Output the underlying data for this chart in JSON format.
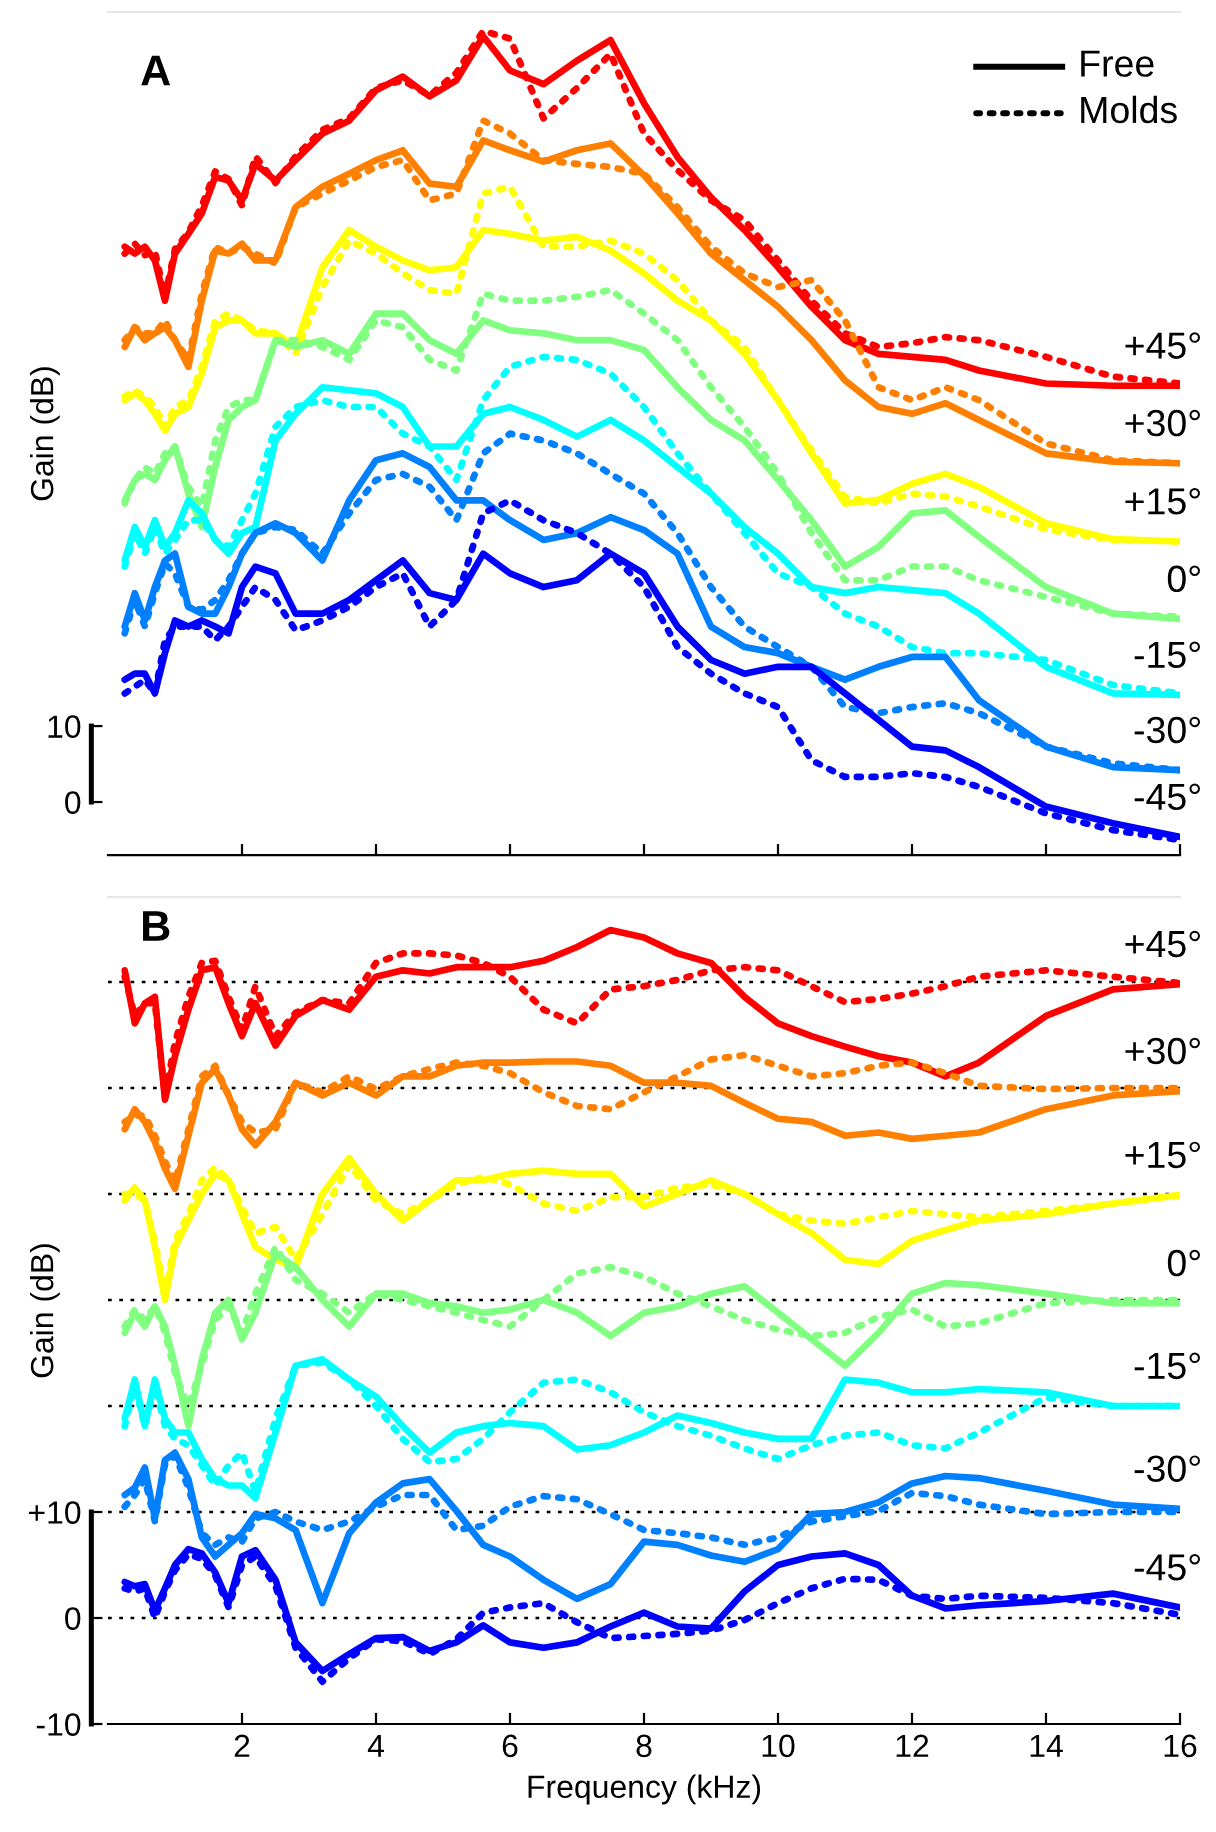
{
  "chart_data": [
    {
      "type": "line",
      "annotations": [
        "A",
        "Free",
        "Molds"
      ],
      "ylabel": "Gain (dB)",
      "tick_labels": "y",
      "x": [
        0.25,
        0.4,
        0.55,
        0.7,
        0.85,
        1.0,
        1.2,
        1.4,
        1.6,
        1.8,
        2.0,
        2.2,
        2.5,
        2.8,
        3.2,
        3.6,
        4.0,
        4.4,
        4.8,
        5.2,
        5.6,
        6.0,
        6.5,
        7.0,
        7.5,
        8.0,
        8.5,
        9.0,
        9.5,
        10,
        10.5,
        11,
        11.5,
        12,
        12.5,
        13,
        14,
        15,
        16
      ],
      "xlim": [
        0,
        16
      ],
      "xticks": [
        2,
        4,
        6,
        8,
        10,
        12,
        14,
        16
      ],
      "ylim": [
        -7,
        104
      ],
      "yticks": [
        0,
        10
      ],
      "series": [
        {
          "name": "+45°",
          "color": "#ff0000",
          "line_style": "solid",
          "values": [
            73.1,
            72.2,
            73.1,
            71.3,
            66,
            72.2,
            74.8,
            77.5,
            82.3,
            81.8,
            79.2,
            84,
            81.8,
            84.5,
            88,
            89.7,
            93.7,
            95.5,
            92.9,
            95,
            100.8,
            96.3,
            94.5,
            97.6,
            100.3,
            92,
            84.9,
            79.6,
            75.3,
            70.4,
            65.2,
            60.8,
            59,
            58.6,
            58.2,
            56.8,
            55.1,
            54.8,
            54.8
          ]
        },
        {
          "color": "#ff0000",
          "line_style": "dotted",
          "values": [
            72.2,
            73.5,
            72,
            72.5,
            66.5,
            72.8,
            75,
            78.5,
            83,
            82,
            78.5,
            85,
            81.5,
            85,
            88.5,
            90,
            94,
            95,
            93,
            96,
            101.5,
            100.5,
            90,
            94,
            98.5,
            88,
            83.2,
            79.2,
            76.6,
            71.3,
            66,
            61.7,
            59.9,
            60.4,
            61.2,
            60.8,
            58.6,
            56,
            55.1
          ]
        },
        {
          "name": "+30°",
          "color": "#ff8000",
          "line_style": "solid",
          "values": [
            59.9,
            62.5,
            60.8,
            61.7,
            62.5,
            60.8,
            57.3,
            66,
            72.6,
            72.2,
            73.5,
            71.3,
            71.3,
            78.3,
            81,
            82.7,
            84.5,
            85.8,
            81.4,
            81,
            87.1,
            85.8,
            84.3,
            85.8,
            86.7,
            82.5,
            77.5,
            72.2,
            68.7,
            65.2,
            60.8,
            55.5,
            52,
            51.1,
            52.5,
            50.3,
            45.9,
            44.8,
            44.6
          ]
        },
        {
          "color": "#ff8000",
          "line_style": "dotted",
          "values": [
            60.8,
            62.5,
            61.7,
            61.7,
            63.4,
            60.8,
            58.2,
            66.9,
            73.1,
            72.2,
            73.1,
            72.2,
            70.9,
            78.3,
            80.1,
            81.8,
            83.6,
            84.5,
            79.2,
            80.1,
            89.7,
            88,
            84.5,
            84,
            83.6,
            82.7,
            78.3,
            73.1,
            69.6,
            67.8,
            68.7,
            63.4,
            54.6,
            52.9,
            54.6,
            52.9,
            47.2,
            45,
            44.6
          ]
        },
        {
          "name": "+15°",
          "color": "#ffff00",
          "line_style": "solid",
          "values": [
            52.9,
            53.8,
            52.9,
            51.1,
            48.9,
            51.1,
            52,
            56.4,
            62.5,
            63.4,
            63.4,
            61.7,
            61.7,
            59.9,
            70.4,
            75.3,
            73.1,
            71.3,
            70,
            70.4,
            75.3,
            74.8,
            73.9,
            74.4,
            72.6,
            69.6,
            66,
            63.4,
            59,
            52.9,
            45.9,
            39.3,
            39.8,
            41.9,
            43.2,
            41.5,
            36.7,
            34.6,
            34.3
          ]
        },
        {
          "color": "#ffff00",
          "line_style": "dotted",
          "values": [
            53.4,
            54.2,
            53.4,
            52,
            49.4,
            52,
            52.9,
            57.3,
            63.4,
            64.3,
            63.4,
            62.1,
            61.7,
            59,
            67.8,
            73.9,
            72.2,
            69.6,
            67.4,
            66.9,
            80.1,
            81,
            73.1,
            73.1,
            73.9,
            72.2,
            68.7,
            63.4,
            59.9,
            52.9,
            46.3,
            40.2,
            39.3,
            40.6,
            40.2,
            38.9,
            35.9,
            34.5,
            34.3
          ]
        },
        {
          "name": "0°",
          "color": "#80ff80",
          "line_style": "solid",
          "values": [
            39.7,
            42.4,
            43.2,
            42.4,
            45,
            46.8,
            40.6,
            36.2,
            44.1,
            50.3,
            52,
            52.9,
            60.8,
            59.9,
            60.8,
            59,
            64.3,
            64.3,
            60.8,
            59,
            63.4,
            62.1,
            61.7,
            60.8,
            60.8,
            59.5,
            54.6,
            50.3,
            47.6,
            42.4,
            37.1,
            31,
            33.6,
            38,
            38.4,
            34.9,
            28.3,
            24.8,
            24.1
          ]
        },
        {
          "color": "#80ff80",
          "line_style": "dotted",
          "values": [
            39.3,
            42.4,
            44.1,
            43.2,
            45.9,
            46.8,
            41.5,
            38.9,
            47.6,
            52,
            52.9,
            52.9,
            60.8,
            60.8,
            59.9,
            58.2,
            63.4,
            62.5,
            58.2,
            56.8,
            66.9,
            66,
            66,
            66.5,
            67.4,
            64.3,
            60.8,
            54.6,
            49.4,
            43.2,
            35.4,
            29.2,
            29.2,
            31,
            31,
            29.2,
            27,
            24.8,
            24.4
          ]
        },
        {
          "name": "-15°",
          "color": "#00ffff",
          "line_style": "solid",
          "values": [
            31.8,
            36.2,
            33.6,
            37.1,
            33.6,
            35.4,
            39.7,
            38,
            34.5,
            32.7,
            35.4,
            36.2,
            47.6,
            51.1,
            54.6,
            54.2,
            53.8,
            52,
            46.8,
            46.8,
            51.1,
            52,
            50.3,
            48.1,
            50.3,
            47.6,
            44.1,
            40.6,
            36.2,
            32.7,
            28.3,
            27.5,
            28.3,
            27.9,
            27.5,
            24.8,
            17.8,
            14.3,
            14.1
          ]
        },
        {
          "color": "#00ffff",
          "line_style": "dotted",
          "values": [
            31,
            35.4,
            32.7,
            36.2,
            32.7,
            34.5,
            37.1,
            37.1,
            34.5,
            33.6,
            37.1,
            40.6,
            49.4,
            52,
            52.9,
            52,
            52,
            48.5,
            46.8,
            42.4,
            52.9,
            57.3,
            58.6,
            58.2,
            56.4,
            52,
            45.9,
            40.6,
            35.4,
            30.1,
            28.3,
            24.8,
            23.1,
            20.4,
            19.6,
            19.6,
            18.7,
            15.4,
            14.3
          ]
        },
        {
          "name": "-30°",
          "color": "#0080ff",
          "line_style": "solid",
          "values": [
            23.1,
            27.5,
            23.9,
            28.3,
            31.8,
            32.7,
            25.7,
            24.8,
            24.8,
            28.3,
            32.7,
            35.4,
            36.7,
            35.4,
            31.8,
            39.7,
            45,
            45.9,
            44.1,
            39.7,
            39.7,
            37.1,
            34.5,
            35.4,
            37.5,
            35.8,
            32.7,
            23.1,
            20.4,
            19.6,
            17.8,
            16.1,
            17.8,
            19.1,
            19.1,
            13.4,
            7.3,
            4.6,
            4.2
          ]
        },
        {
          "color": "#0080ff",
          "line_style": "dotted",
          "values": [
            22.2,
            26.6,
            23.1,
            27.5,
            31.4,
            30.1,
            25.7,
            25.3,
            26.6,
            29.2,
            32.7,
            35.4,
            36.2,
            35.8,
            32.7,
            38,
            42.4,
            43.2,
            41.5,
            37.1,
            45.9,
            48.5,
            47.6,
            45.9,
            43.2,
            40.6,
            35.4,
            28.3,
            23.1,
            20.4,
            17.8,
            12.5,
            11.7,
            12.5,
            13,
            11.7,
            7.3,
            5.1,
            4.2
          ]
        },
        {
          "name": "-45°",
          "color": "#0000ff",
          "line_style": "solid",
          "values": [
            16.1,
            16.9,
            16.9,
            14.3,
            19.6,
            23.9,
            23.1,
            23.9,
            23.1,
            22.2,
            28.3,
            31,
            30.1,
            24.8,
            24.8,
            26.6,
            29.2,
            31.8,
            27.5,
            26.6,
            32.7,
            30.1,
            28.3,
            29.2,
            32.7,
            30.1,
            23.1,
            18.7,
            16.9,
            17.8,
            17.8,
            14.3,
            10.8,
            7.3,
            6.8,
            4.6,
            -0.6,
            -2.8,
            -4.6
          ]
        },
        {
          "color": "#0000ff",
          "line_style": "dotted",
          "values": [
            14.3,
            15.2,
            16.1,
            14.3,
            21.3,
            23.1,
            23.1,
            23.1,
            21.3,
            23.1,
            25.7,
            28.3,
            26.6,
            22.6,
            23.9,
            25.7,
            28.3,
            30.1,
            23.1,
            26.6,
            38,
            39.7,
            37.1,
            35.4,
            32.7,
            28.3,
            20.4,
            16.9,
            14.3,
            12.5,
            5.5,
            3.3,
            3.3,
            3.8,
            3.3,
            2,
            -1.5,
            -3.7,
            -5
          ]
        }
      ]
    },
    {
      "type": "line",
      "annotations": [
        "B"
      ],
      "xlabel": "Frequency (kHz)",
      "ylabel": "Gain (dB)",
      "x": [
        0.25,
        0.4,
        0.55,
        0.7,
        0.85,
        1.0,
        1.2,
        1.4,
        1.6,
        1.8,
        2.0,
        2.2,
        2.5,
        2.8,
        3.2,
        3.6,
        4.0,
        4.4,
        4.8,
        5.2,
        5.6,
        6.0,
        6.5,
        7.0,
        7.5,
        8.0,
        8.5,
        9.0,
        9.5,
        10,
        10.5,
        11,
        11.5,
        12,
        12.5,
        13,
        14,
        15,
        16
      ],
      "xlim": [
        0,
        16
      ],
      "xticks": [
        2,
        4,
        6,
        8,
        10,
        12,
        14,
        16
      ],
      "ylim": [
        -10,
        68
      ],
      "yticks": [
        {
          "value": 10,
          "label": "+10"
        },
        0,
        {
          "value": -10,
          "label": "-10"
        }
      ],
      "ref_lines": [
        {
          "axis": "y",
          "value": 60,
          "color": "#000000",
          "line_style": "dotted"
        },
        {
          "axis": "y",
          "value": 50,
          "color": "#000000",
          "line_style": "dotted"
        },
        {
          "axis": "y",
          "value": 40,
          "color": "#000000",
          "line_style": "dotted"
        },
        {
          "axis": "y",
          "value": 30,
          "color": "#000000",
          "line_style": "dotted"
        },
        {
          "axis": "y",
          "value": 20,
          "color": "#000000",
          "line_style": "dotted"
        },
        {
          "axis": "y",
          "value": 10,
          "color": "#000000",
          "line_style": "dotted"
        },
        {
          "axis": "y",
          "value": 0,
          "color": "#000000",
          "line_style": "dotted"
        }
      ],
      "series": [
        {
          "name": "+45°",
          "color": "#ff0000",
          "line_style": "solid",
          "values": [
            61.1,
            56.1,
            58,
            58.6,
            48.9,
            53,
            57.4,
            61.1,
            61.4,
            58,
            54.9,
            58,
            54,
            56.8,
            58.3,
            57.4,
            60.5,
            61.1,
            60.8,
            61.4,
            61.4,
            61.4,
            62,
            63.3,
            64.9,
            64.2,
            62.7,
            61.8,
            58.6,
            56.1,
            54.9,
            53.9,
            53,
            52.4,
            51.1,
            52.4,
            56.8,
            59.3,
            59.8
          ]
        },
        {
          "color": "#ff0000",
          "line_style": "dotted",
          "values": [
            60.5,
            56.8,
            58,
            58,
            49.3,
            54.3,
            58.6,
            61.8,
            62,
            58.6,
            55.5,
            59.6,
            54.9,
            57.1,
            58.3,
            58,
            61.8,
            62.7,
            62.7,
            62.5,
            61.8,
            60.5,
            57.4,
            56.1,
            59.3,
            59.6,
            60.2,
            61.1,
            61.4,
            61.1,
            59.6,
            58.1,
            58.4,
            58.9,
            59.6,
            60.5,
            61.1,
            60.5,
            59.9
          ]
        },
        {
          "name": "+30°",
          "color": "#ff8000",
          "line_style": "solid",
          "values": [
            46.1,
            48,
            46.8,
            44.9,
            42.4,
            40.5,
            45.5,
            50.5,
            51.8,
            49.3,
            46.1,
            44.6,
            46.8,
            50.5,
            49.3,
            50.5,
            49.3,
            51.1,
            51.1,
            52.1,
            52.4,
            52.4,
            52.5,
            52.5,
            52.1,
            50.5,
            50.5,
            50.2,
            48.6,
            47.1,
            46.8,
            45.5,
            45.8,
            45.2,
            45.5,
            45.8,
            48,
            49.3,
            49.7
          ]
        },
        {
          "color": "#ff8000",
          "line_style": "dotted",
          "values": [
            46.8,
            47.4,
            47.4,
            45.5,
            43.1,
            41.1,
            46.1,
            51.1,
            52.1,
            49.3,
            46.8,
            45.8,
            46.1,
            50.5,
            49.6,
            51.1,
            49.9,
            51.1,
            51.8,
            52.4,
            52.1,
            51.4,
            49.6,
            48.3,
            48,
            49.6,
            51.1,
            52.7,
            53.1,
            52.1,
            51.1,
            51.4,
            52.1,
            52.4,
            51.4,
            50.2,
            49.9,
            50,
            50
          ]
        },
        {
          "name": "+15°",
          "color": "#ffff00",
          "line_style": "solid",
          "values": [
            39.4,
            40.6,
            39.4,
            35,
            30,
            35,
            37.5,
            40,
            41.9,
            41.3,
            38.1,
            35,
            33.8,
            33.1,
            40,
            43.4,
            40,
            37.5,
            39.4,
            41.3,
            41.3,
            41.9,
            42.2,
            41.9,
            41.9,
            38.8,
            40,
            41.3,
            40,
            38.1,
            36.3,
            33.8,
            33.4,
            35.6,
            36.6,
            37.5,
            38.1,
            39.1,
            39.9
          ]
        },
        {
          "color": "#ffff00",
          "line_style": "dotted",
          "values": [
            40,
            40,
            39.4,
            35.6,
            30.6,
            35.6,
            38.1,
            41.3,
            42.5,
            41.3,
            38.8,
            36.3,
            36.9,
            33.8,
            38.1,
            42.8,
            39.4,
            38.1,
            39.4,
            40.9,
            41.6,
            40.9,
            39.1,
            38.4,
            39.7,
            39.7,
            40.6,
            40.9,
            40,
            38.1,
            37.5,
            37.2,
            37.8,
            38.4,
            38.1,
            37.8,
            38.4,
            39.1,
            39.9
          ]
        },
        {
          "name": "0°",
          "color": "#80ff80",
          "line_style": "solid",
          "values": [
            26.9,
            28.8,
            27.5,
            29.4,
            27.5,
            23.8,
            18.1,
            24.4,
            28.8,
            30,
            26.3,
            28.8,
            34.4,
            33.1,
            30,
            27.5,
            30.6,
            30.6,
            29.7,
            29.4,
            28.8,
            29.1,
            30,
            28.8,
            26.6,
            28.8,
            29.4,
            30.6,
            31.3,
            28.8,
            26.3,
            23.8,
            26.9,
            30.6,
            31.6,
            31.4,
            30.6,
            29.7,
            29.7
          ]
        },
        {
          "color": "#80ff80",
          "line_style": "dotted",
          "values": [
            27.5,
            29.1,
            28.1,
            29.4,
            26.9,
            23.1,
            20,
            23.8,
            28.1,
            29.4,
            26.9,
            30.6,
            35,
            31.9,
            30.6,
            28.8,
            30.6,
            30,
            29.4,
            28.8,
            28.1,
            27.5,
            30,
            32.5,
            33.1,
            32.2,
            30.6,
            29.4,
            28.1,
            27.2,
            26.6,
            26.9,
            28.4,
            29.1,
            27.5,
            27.8,
            29.7,
            30,
            30
          ]
        },
        {
          "name": "-15°",
          "color": "#00ffff",
          "line_style": "solid",
          "values": [
            18.8,
            22.5,
            18.1,
            22.5,
            18.8,
            17.5,
            17.5,
            15,
            13.1,
            12.5,
            12.5,
            11.3,
            17.5,
            23.8,
            24.4,
            22.5,
            20.9,
            18.1,
            15.6,
            17.5,
            18.1,
            18.4,
            18.1,
            15.9,
            16.3,
            17.5,
            19.1,
            18.4,
            17.5,
            16.9,
            16.9,
            22.5,
            22.2,
            21.3,
            21.3,
            21.6,
            21.3,
            20,
            20
          ]
        },
        {
          "color": "#00ffff",
          "line_style": "dotted",
          "values": [
            18.1,
            21.9,
            18.1,
            21.9,
            18.1,
            16.9,
            16.3,
            14.4,
            12.5,
            14.4,
            15.6,
            11.9,
            18.8,
            23.8,
            24.1,
            22.5,
            20,
            16.9,
            14.7,
            15,
            16.9,
            19.4,
            22.2,
            22.5,
            21.3,
            19.4,
            18.1,
            17.2,
            16,
            15,
            16.3,
            17.2,
            17.5,
            16.3,
            16,
            17.5,
            20.8,
            20,
            20
          ]
        },
        {
          "name": "-30°",
          "color": "#0080ff",
          "line_style": "solid",
          "values": [
            11.6,
            12.3,
            14.2,
            9.4,
            14.9,
            15.6,
            13.1,
            7.6,
            5.8,
            6.9,
            8.0,
            9.8,
            9.4,
            8.3,
            1.4,
            8.0,
            10.9,
            12.7,
            13.1,
            10.1,
            6.9,
            5.8,
            3.6,
            1.8,
            3.2,
            7.2,
            6.9,
            5.9,
            5.3,
            6.5,
            9.8,
            10,
            10.9,
            12.7,
            13.4,
            13.2,
            12,
            10.7,
            10.3
          ]
        },
        {
          "color": "#0080ff",
          "line_style": "dotted",
          "values": [
            10.5,
            11.6,
            13.1,
            9.1,
            14.5,
            15.3,
            12.3,
            8.0,
            6.9,
            7.6,
            7.2,
            9.4,
            10,
            9.1,
            8.3,
            9.1,
            10.5,
            11.6,
            11.6,
            8.3,
            8.7,
            10.5,
            11.5,
            11.2,
            9.8,
            8.3,
            8.0,
            7.6,
            6.9,
            7.6,
            9.1,
            9.6,
            10.1,
            11.8,
            11.5,
            10.7,
            9.8,
            10,
            10
          ]
        },
        {
          "name": "-45°",
          "color": "#0000ff",
          "line_style": "solid",
          "values": [
            3.4,
            3.0,
            3.2,
            0.7,
            2.8,
            5.0,
            6.5,
            6.1,
            4.3,
            1.4,
            5.8,
            6.4,
            3.6,
            -2.3,
            -5.0,
            -3.4,
            -1.9,
            -1.8,
            -3.1,
            -2.3,
            -0.7,
            -2.3,
            -2.8,
            -2.3,
            -0.8,
            0.5,
            -0.8,
            -1.0,
            2.5,
            5.0,
            5.8,
            6.1,
            5.0,
            2.1,
            0.9,
            1.2,
            1.6,
            2.3,
            1.0
          ]
        },
        {
          "color": "#0000ff",
          "line_style": "dotted",
          "values": [
            2.8,
            2.5,
            2.8,
            0,
            2.5,
            4.5,
            6.0,
            5.6,
            4.0,
            1.0,
            5.0,
            5.8,
            3.0,
            -2.8,
            -6.0,
            -3.8,
            -2.0,
            -2.2,
            -3.4,
            -2.0,
            0.5,
            1.0,
            1.4,
            -0.4,
            -1.9,
            -1.7,
            -1.5,
            -1.2,
            -0.2,
            1.4,
            2.8,
            3.7,
            3.6,
            2.1,
            1.8,
            2.1,
            1.9,
            1.4,
            0.3
          ]
        }
      ]
    }
  ]
}
